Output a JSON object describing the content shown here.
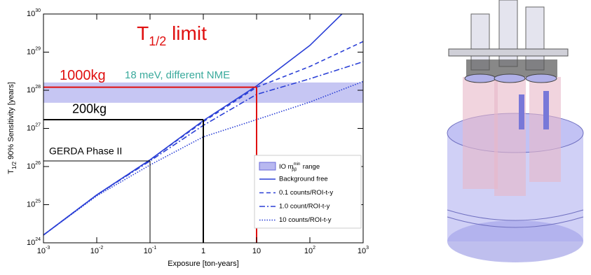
{
  "chart_data": {
    "type": "line",
    "title": {
      "main": "T",
      "sub": "1/2",
      "tail": " limit"
    },
    "xlabel": "Exposure [ton-years]",
    "ylabel": {
      "main": "T",
      "sub": "1/2",
      "tail": " 90% Sensitivity [years]"
    },
    "log_x": true,
    "log_y": true,
    "grid": false,
    "xlim": [
      0.001,
      1000
    ],
    "ylim": [
      1e+24,
      1e+30
    ],
    "xticks": [
      {
        "value": 0.001,
        "label": "10",
        "exp": "-3"
      },
      {
        "value": 0.01,
        "label": "10",
        "exp": "-2"
      },
      {
        "value": 0.1,
        "label": "10",
        "exp": "-1"
      },
      1,
      10,
      {
        "value": 100,
        "label": "10",
        "exp": "2"
      },
      {
        "value": 1000,
        "label": "10",
        "exp": "3"
      }
    ],
    "yticks": [
      {
        "value": 1e+24,
        "label": "10",
        "exp": "24"
      },
      {
        "value": 1e+25,
        "label": "10",
        "exp": "25"
      },
      {
        "value": 1e+26,
        "label": "10",
        "exp": "26"
      },
      {
        "value": 1e+27,
        "label": "10",
        "exp": "27"
      },
      {
        "value": 1e+28,
        "label": "10",
        "exp": "28"
      },
      {
        "value": 1e+29,
        "label": "10",
        "exp": "29"
      },
      {
        "value": 1e+30,
        "label": "10",
        "exp": "30"
      }
    ],
    "band": {
      "name": "IO m",
      "name_sup": "min",
      "name_sub": "ββ",
      "name_tail": " range",
      "color": "#b8b8f0",
      "range": [
        4.7e+27,
        1.6e+28
      ]
    },
    "series": [
      {
        "name": "Background free",
        "color": "#2a3fd6",
        "style": "solid",
        "x": [
          0.001,
          0.01,
          0.1,
          1,
          10,
          100,
          400
        ],
        "values": [
          1.6e+24,
          1.8e+25,
          1.5e+26,
          1.6e+27,
          1.3e+28,
          1.5e+29,
          1e+30
        ]
      },
      {
        "name": "0.1 counts/ROI-t-y",
        "color": "#2a3fd6",
        "style": "dashed",
        "x": [
          0.001,
          0.01,
          0.1,
          1,
          10,
          100,
          1000
        ],
        "values": [
          1.6e+24,
          1.8e+25,
          1.5e+26,
          1.5e+27,
          1.2e+28,
          4.2e+28,
          1.9e+29
        ]
      },
      {
        "name": "1.0 count/ROI-t-y",
        "color": "#2a3fd6",
        "style": "dashdot",
        "x": [
          0.001,
          0.01,
          0.1,
          1,
          10,
          100,
          1000
        ],
        "values": [
          1.6e+24,
          1.8e+25,
          1.4e+26,
          1.2e+27,
          7.8e+27,
          2e+28,
          5.6e+28
        ]
      },
      {
        "name": "10 counts/ROI-t-y",
        "color": "#2a3fd6",
        "style": "dotted",
        "x": [
          0.001,
          0.01,
          0.1,
          1,
          10,
          100,
          1000
        ],
        "values": [
          1.6e+24,
          1.7e+25,
          1.1e+26,
          6e+26,
          1.7e+27,
          4.9e+27,
          1.7e+28
        ]
      }
    ],
    "reference_lines": [
      {
        "label": "1000kg",
        "color": "#e01010",
        "x": 10,
        "y": 1.2e+28
      },
      {
        "label": "200kg",
        "color": "#000000",
        "x": 1,
        "y": 1.7e+27
      },
      {
        "label": "GERDA Phase II",
        "color": "#000000",
        "x": 0.1,
        "y": 1.4e+26
      }
    ],
    "annotation": "18 meV, different NME"
  }
}
